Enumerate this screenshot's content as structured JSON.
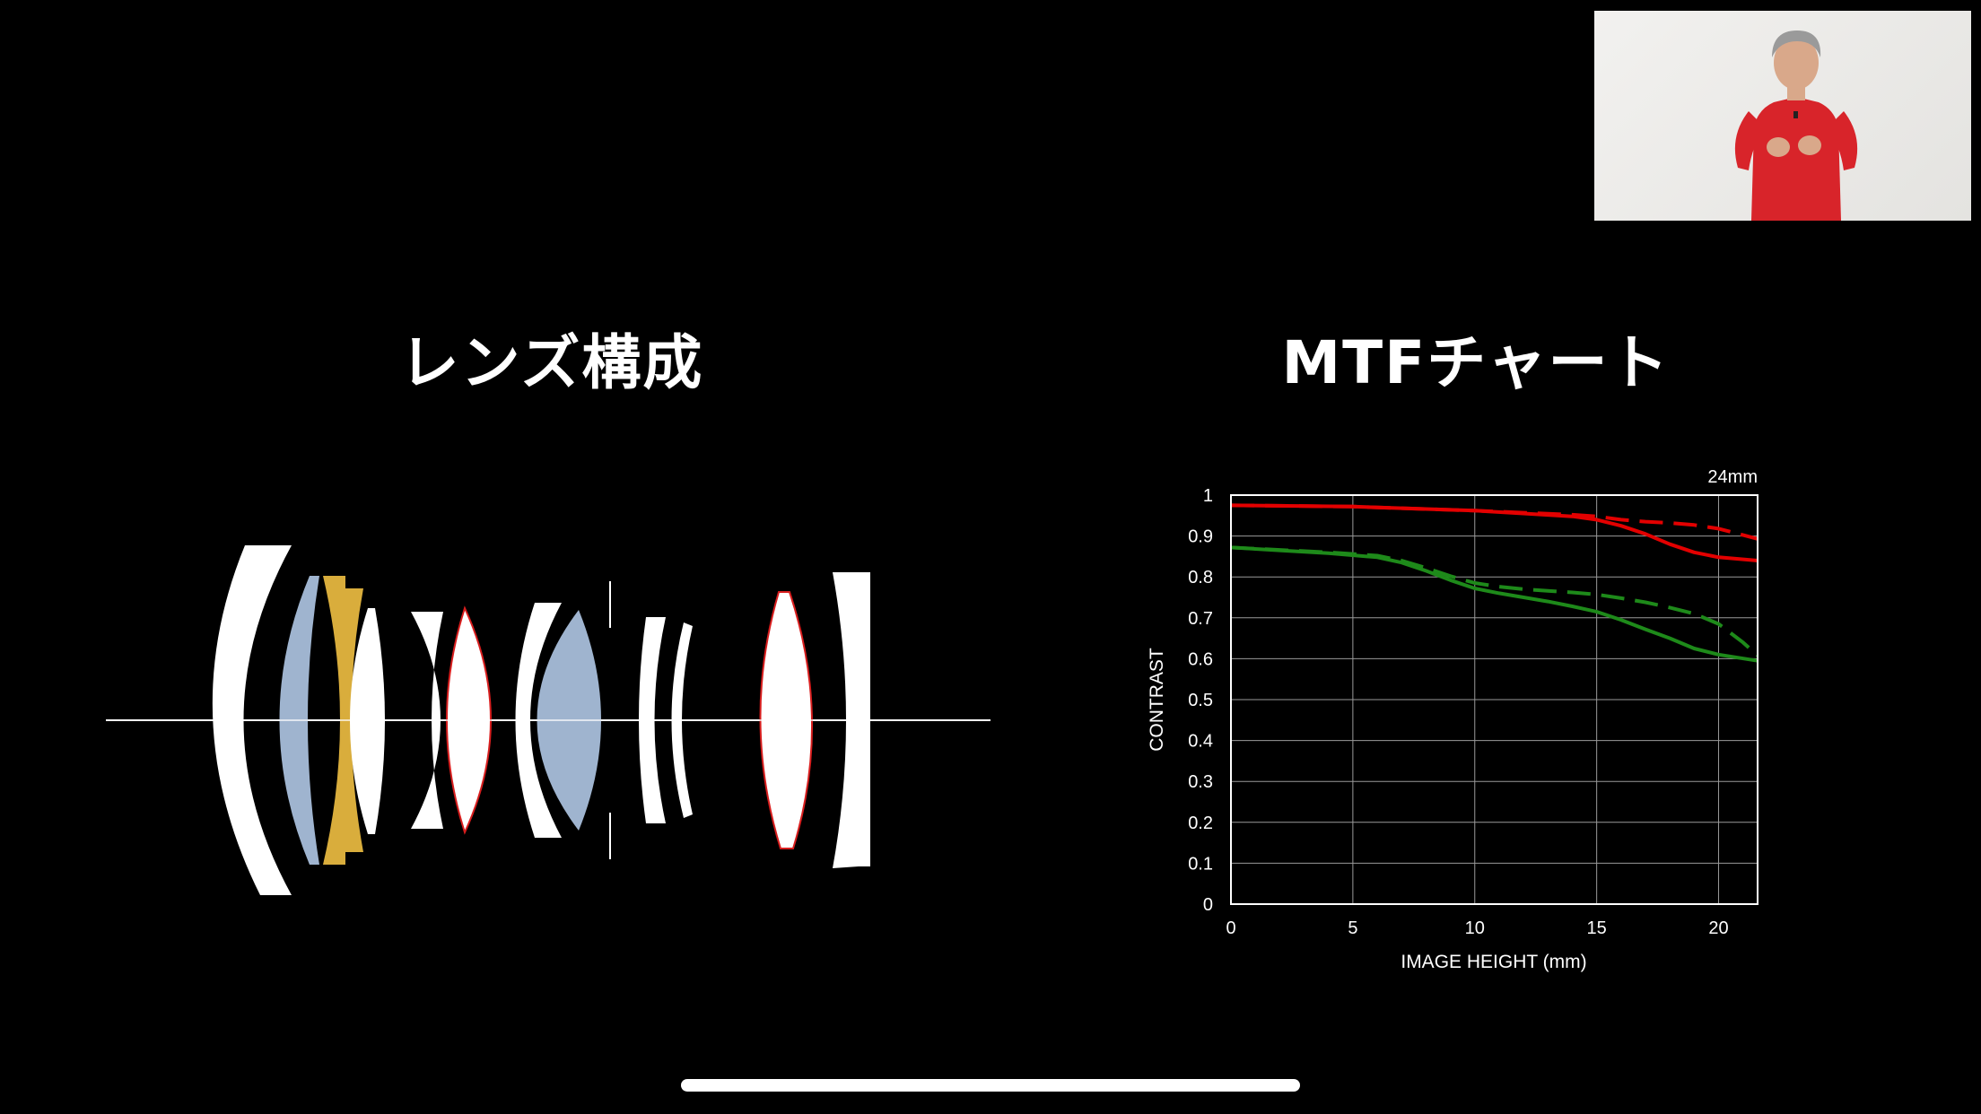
{
  "lens_section": {
    "title": "レンズ構成"
  },
  "mtf_section": {
    "title": "MTFチャート"
  },
  "colors": {
    "background": "#000000",
    "red_series": "#e30000",
    "green_series": "#1e8a1a",
    "low_dispersion_element": "#9fb4cf",
    "aspherical_element": "#d9ad3c",
    "element_outline": "#d81e1e"
  },
  "chart_data": {
    "type": "line",
    "corner_label": "24mm",
    "xlabel": "IMAGE HEIGHT (mm)",
    "ylabel": "CONTRAST",
    "xlim": [
      0,
      21.6
    ],
    "ylim": [
      0,
      1
    ],
    "x_ticks": [
      0,
      5,
      10,
      15,
      20
    ],
    "y_ticks": [
      0,
      0.1,
      0.2,
      0.3,
      0.4,
      0.5,
      0.6,
      0.7,
      0.8,
      0.9,
      1
    ],
    "y_tick_labels": [
      "0",
      "0.1",
      "0.2",
      "0.3",
      "0.4",
      "0.5",
      "0.6",
      "0.7",
      "0.8",
      "0.9",
      "1"
    ],
    "grid": true,
    "series": [
      {
        "color": "red",
        "style": "solid",
        "x": [
          0,
          5,
          10,
          12,
          14,
          15,
          16,
          17,
          18,
          19,
          20,
          21.6
        ],
        "y": [
          0.975,
          0.972,
          0.962,
          0.955,
          0.948,
          0.94,
          0.925,
          0.905,
          0.88,
          0.86,
          0.848,
          0.84
        ]
      },
      {
        "color": "red",
        "style": "dashed",
        "x": [
          0,
          5,
          10,
          12,
          14,
          15,
          16,
          17,
          18,
          19,
          20,
          21.6
        ],
        "y": [
          0.975,
          0.972,
          0.962,
          0.957,
          0.952,
          0.948,
          0.94,
          0.935,
          0.932,
          0.927,
          0.918,
          0.893
        ]
      },
      {
        "color": "green",
        "style": "solid",
        "x": [
          0,
          2,
          4,
          6,
          7,
          8,
          9,
          10,
          11,
          12,
          13,
          14,
          15,
          16,
          17,
          18,
          19,
          20,
          21.6
        ],
        "y": [
          0.872,
          0.865,
          0.858,
          0.848,
          0.835,
          0.815,
          0.792,
          0.772,
          0.76,
          0.75,
          0.74,
          0.728,
          0.715,
          0.695,
          0.672,
          0.65,
          0.625,
          0.61,
          0.595
        ]
      },
      {
        "color": "green",
        "style": "dashed",
        "x": [
          0,
          2,
          4,
          6,
          7,
          8,
          9,
          10,
          11,
          12,
          13,
          14,
          15,
          16,
          17,
          18,
          19,
          20,
          21,
          21.6
        ],
        "y": [
          0.872,
          0.866,
          0.86,
          0.852,
          0.84,
          0.822,
          0.802,
          0.785,
          0.776,
          0.77,
          0.766,
          0.762,
          0.757,
          0.748,
          0.738,
          0.725,
          0.71,
          0.685,
          0.64,
          0.608
        ]
      }
    ]
  }
}
